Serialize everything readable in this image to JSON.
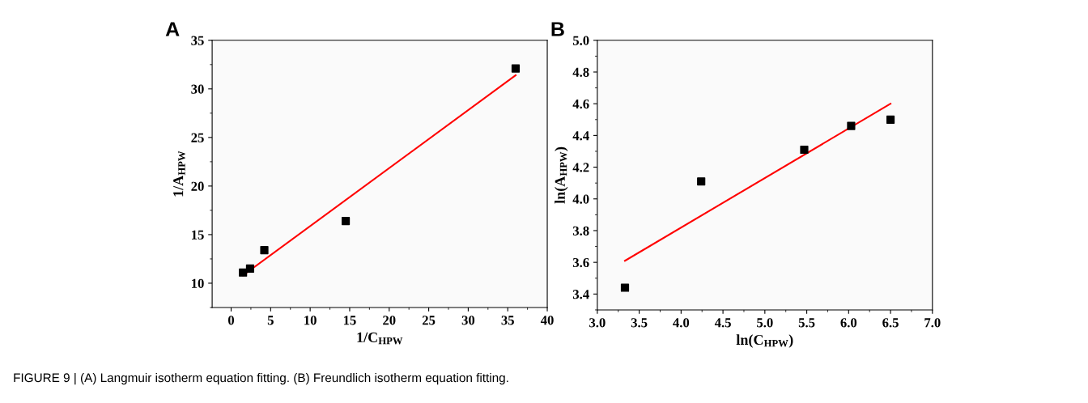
{
  "chart_data": [
    {
      "type": "scatter",
      "title": "A",
      "xlabel": "1/C$_{HPW}$",
      "ylabel": "1/A$_{HPW}$",
      "xlim": [
        -2.4,
        40
      ],
      "ylim": [
        7.5,
        35
      ],
      "xticks": [
        0,
        5,
        10,
        15,
        20,
        25,
        30,
        35,
        40
      ],
      "yticks": [
        10,
        15,
        20,
        25,
        30,
        35
      ],
      "grid": false,
      "series": [
        {
          "color": "#000000",
          "marker": "square",
          "x": [
            1.5,
            2.4,
            4.2,
            14.5,
            36
          ],
          "values": [
            11.1,
            11.5,
            13.4,
            16.4,
            32.1
          ]
        },
        {
          "type": "line",
          "color": "#ff0000",
          "marker": "none",
          "line_style": "solid",
          "x": [
            1.5,
            36
          ],
          "values": [
            10.8,
            31.4
          ]
        }
      ]
    },
    {
      "type": "scatter",
      "title": "B",
      "xlabel": "ln(C$_{HPW}$)",
      "ylabel": "ln(A$_{HPW}$)",
      "xlim": [
        3.0,
        7.0
      ],
      "ylim": [
        3.3,
        5.0
      ],
      "xticks": [
        {
          "value": 3.0,
          "label": "3.0"
        },
        3.5,
        {
          "value": 4.0,
          "label": "4.0"
        },
        4.5,
        {
          "value": 5.0,
          "label": "5.0"
        },
        5.5,
        {
          "value": 6.0,
          "label": "6.0"
        },
        6.5,
        {
          "value": 7.0,
          "label": "7.0"
        }
      ],
      "yticks": [
        3.4,
        3.6,
        3.8,
        {
          "value": 4.0,
          "label": "4.0"
        },
        4.2,
        4.4,
        4.6,
        4.8,
        {
          "value": 5.0,
          "label": "5.0"
        }
      ],
      "grid": false,
      "annotations": [
        "FIGURE 9 | (A) Langmuir isotherm equation fitting. (B) Freundlich isotherm equation fitting."
      ],
      "series": [
        {
          "color": "#000000",
          "marker": "square",
          "x": [
            3.33,
            4.24,
            5.47,
            6.03,
            6.5
          ],
          "values": [
            3.44,
            4.11,
            4.31,
            4.46,
            4.5
          ]
        },
        {
          "type": "line",
          "color": "#ff0000",
          "marker": "none",
          "line_style": "solid",
          "x": [
            3.33,
            6.5
          ],
          "values": [
            3.61,
            4.6
          ]
        }
      ]
    }
  ]
}
